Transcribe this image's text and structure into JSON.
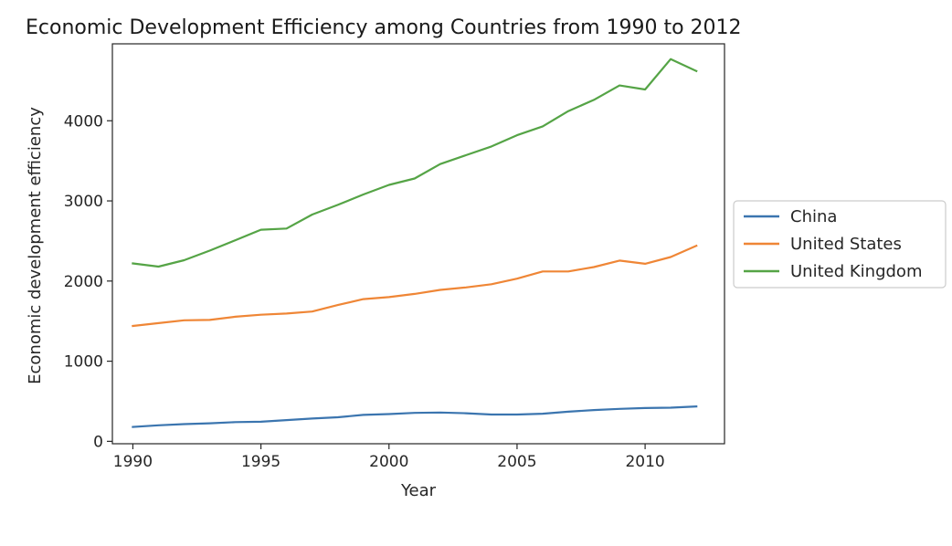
{
  "chart_data": {
    "type": "line",
    "title": "Economic Development Efficiency among Countries from 1990 to 2012",
    "xlabel": "Year",
    "ylabel": "Economic development efficiency",
    "x": [
      1990,
      1991,
      1992,
      1993,
      1994,
      1995,
      1996,
      1997,
      1998,
      1999,
      2000,
      2001,
      2002,
      2003,
      2004,
      2005,
      2006,
      2007,
      2008,
      2009,
      2010,
      2011,
      2012
    ],
    "xlim": [
      1989.2,
      2013.1
    ],
    "ylim": [
      -30,
      4960
    ],
    "xticks": [
      1990,
      1995,
      2000,
      2005,
      2010
    ],
    "yticks": [
      0,
      1000,
      2000,
      3000,
      4000
    ],
    "legend_position": "center-right, outside plot",
    "grid": false,
    "series": [
      {
        "name": "China",
        "color": "#3b75af",
        "values": [
          180,
          200,
          215,
          225,
          240,
          245,
          265,
          285,
          300,
          330,
          340,
          355,
          360,
          350,
          335,
          335,
          345,
          370,
          390,
          405,
          415,
          420,
          435
        ]
      },
      {
        "name": "United States",
        "color": "#ef8636",
        "values": [
          1440,
          1475,
          1510,
          1515,
          1555,
          1580,
          1595,
          1620,
          1700,
          1775,
          1800,
          1840,
          1890,
          1920,
          1960,
          2030,
          2120,
          2120,
          2175,
          2255,
          2215,
          2300,
          2440
        ]
      },
      {
        "name": "United Kingdom",
        "color": "#55a446",
        "values": [
          2220,
          2180,
          2260,
          2380,
          2510,
          2640,
          2655,
          2830,
          2950,
          3080,
          3200,
          3280,
          3460,
          3570,
          3680,
          3820,
          3930,
          4120,
          4260,
          4440,
          4390,
          4770,
          4620
        ]
      }
    ]
  }
}
